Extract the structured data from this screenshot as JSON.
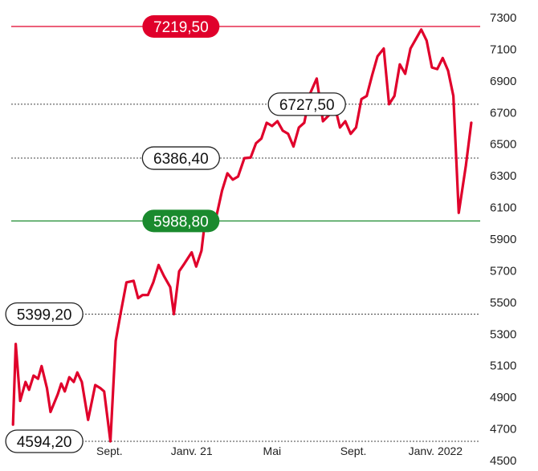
{
  "chart_data": {
    "type": "line",
    "series": [
      {
        "color": "#e0002b",
        "points": [
          [
            "2020-06-15",
            4700
          ],
          [
            "2020-06-18",
            5210
          ],
          [
            "2020-06-23",
            4850
          ],
          [
            "2020-06-29",
            4970
          ],
          [
            "2020-07-03",
            4920
          ],
          [
            "2020-07-08",
            5010
          ],
          [
            "2020-07-13",
            4990
          ],
          [
            "2020-07-17",
            5070
          ],
          [
            "2020-07-23",
            4930
          ],
          [
            "2020-07-27",
            4780
          ],
          [
            "2020-08-04",
            4890
          ],
          [
            "2020-08-08",
            4960
          ],
          [
            "2020-08-12",
            4910
          ],
          [
            "2020-08-17",
            5000
          ],
          [
            "2020-08-22",
            4970
          ],
          [
            "2020-08-26",
            5030
          ],
          [
            "2020-08-31",
            4970
          ],
          [
            "2020-09-07",
            4730
          ],
          [
            "2020-09-15",
            4950
          ],
          [
            "2020-09-21",
            4930
          ],
          [
            "2020-09-25",
            4910
          ],
          [
            "2020-10-02",
            4594.2
          ],
          [
            "2020-10-08",
            5230
          ],
          [
            "2020-10-14",
            5420
          ],
          [
            "2020-10-20",
            5600
          ],
          [
            "2020-10-28",
            5610
          ],
          [
            "2020-11-02",
            5500
          ],
          [
            "2020-11-07",
            5520
          ],
          [
            "2020-11-13",
            5520
          ],
          [
            "2020-11-19",
            5600
          ],
          [
            "2020-11-25",
            5710
          ],
          [
            "2020-12-01",
            5640
          ],
          [
            "2020-12-08",
            5570
          ],
          [
            "2020-12-12",
            5399.2
          ],
          [
            "2020-12-18",
            5670
          ],
          [
            "2020-12-24",
            5720
          ],
          [
            "2021-01-01",
            5790
          ],
          [
            "2021-01-06",
            5700
          ],
          [
            "2021-01-12",
            5800
          ],
          [
            "2021-01-17",
            6040
          ],
          [
            "2021-01-22",
            5988.8
          ],
          [
            "2021-01-28",
            6000
          ],
          [
            "2021-02-04",
            6180
          ],
          [
            "2021-02-10",
            6290
          ],
          [
            "2021-02-16",
            6250
          ],
          [
            "2021-02-22",
            6270
          ],
          [
            "2021-03-01",
            6386.4
          ],
          [
            "2021-03-08",
            6390
          ],
          [
            "2021-03-14",
            6480
          ],
          [
            "2021-03-20",
            6510
          ],
          [
            "2021-03-26",
            6610
          ],
          [
            "2021-04-01",
            6590
          ],
          [
            "2021-04-07",
            6620
          ],
          [
            "2021-04-13",
            6560
          ],
          [
            "2021-04-19",
            6540
          ],
          [
            "2021-04-25",
            6460
          ],
          [
            "2021-05-01",
            6580
          ],
          [
            "2021-05-07",
            6610
          ],
          [
            "2021-05-14",
            6800
          ],
          [
            "2021-05-21",
            6890
          ],
          [
            "2021-05-28",
            6620
          ],
          [
            "2021-06-04",
            6660
          ],
          [
            "2021-06-10",
            6720
          ],
          [
            "2021-06-16",
            6580
          ],
          [
            "2021-06-22",
            6620
          ],
          [
            "2021-06-28",
            6540
          ],
          [
            "2021-07-04",
            6580
          ],
          [
            "2021-07-10",
            6760
          ],
          [
            "2021-07-16",
            6780
          ],
          [
            "2021-07-22",
            6910
          ],
          [
            "2021-07-28",
            7030
          ],
          [
            "2021-08-04",
            7080
          ],
          [
            "2021-08-10",
            6727.5
          ],
          [
            "2021-08-16",
            6780
          ],
          [
            "2021-08-22",
            6980
          ],
          [
            "2021-08-28",
            6920
          ],
          [
            "2021-09-03",
            7080
          ],
          [
            "2021-09-09",
            7140
          ],
          [
            "2021-09-15",
            7200
          ],
          [
            "2021-09-21",
            7130
          ],
          [
            "2021-09-27",
            6960
          ],
          [
            "2021-10-03",
            6950
          ],
          [
            "2021-10-09",
            7020
          ],
          [
            "2021-10-15",
            6940
          ],
          [
            "2021-10-21",
            6780
          ],
          [
            "2021-10-27",
            6040
          ],
          [
            "2021-11-04",
            6340
          ],
          [
            "2021-11-10",
            6610
          ]
        ]
      }
    ],
    "x_ticks": [
      {
        "date": "2020-10-01",
        "label": "Sept."
      },
      {
        "date": "2021-01-01",
        "label": "Janv. 21"
      },
      {
        "date": "2021-04-01",
        "label": "Mai"
      },
      {
        "date": "2021-07-01",
        "label": "Sept."
      },
      {
        "date": "2021-10-01",
        "label": "Janv. 2022"
      }
    ],
    "x_range": [
      "2020-06-13",
      "2021-11-20"
    ],
    "y_ticks": [
      4500,
      4700,
      4900,
      5100,
      5300,
      5500,
      5700,
      5900,
      6100,
      6300,
      6500,
      6700,
      6900,
      7100,
      7300
    ],
    "ylim": [
      4594.2,
      7219.5
    ],
    "reference_lines": [
      {
        "value": 7219.5,
        "label": "7219,50",
        "style": "solid",
        "color": "#e0002b",
        "label_style": "filled",
        "label_x_date": "2020-12-20"
      },
      {
        "value": 6727.5,
        "label": "6727,50",
        "style": "dotted",
        "color": "#444444",
        "label_style": "outline",
        "label_x_date": "2021-05-10"
      },
      {
        "value": 6386.4,
        "label": "6386,40",
        "style": "dotted",
        "color": "#444444",
        "label_style": "outline",
        "label_x_date": "2020-12-20"
      },
      {
        "value": 5988.8,
        "label": "5988,80",
        "style": "solid",
        "color": "#1a8a2e",
        "label_style": "filled",
        "label_x_date": "2020-12-20"
      },
      {
        "value": 5399.2,
        "label": "5399,20",
        "style": "dotted",
        "color": "#444444",
        "label_style": "outline",
        "label_x_date": "2020-07-20"
      },
      {
        "value": 4594.2,
        "label": "4594,20",
        "style": "dotted",
        "color": "#444444",
        "label_style": "outline",
        "label_x_date": "2020-07-20"
      }
    ]
  }
}
